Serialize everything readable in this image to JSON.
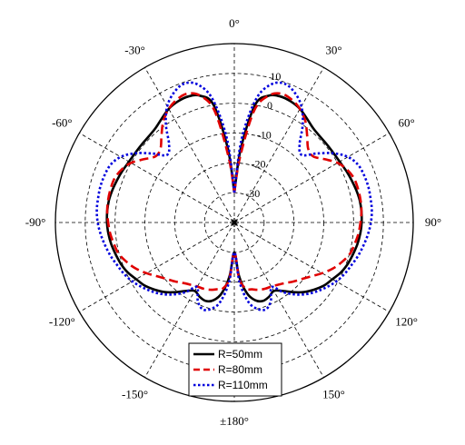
{
  "chart_data": {
    "type": "line",
    "subtype": "polar",
    "title": "",
    "angle_labels": [
      "0°",
      "30°",
      "60°",
      "90°",
      "120°",
      "150°",
      "±180°",
      "-150°",
      "-120°",
      "-90°",
      "-60°",
      "-30°"
    ],
    "angle_label_degrees": [
      0,
      30,
      60,
      90,
      120,
      150,
      180,
      -150,
      -120,
      -90,
      -60,
      -30
    ],
    "radial_ticks": [
      10,
      0,
      -10,
      -20,
      -30
    ],
    "radial_tick_labels": [
      "10",
      "0",
      "-10",
      "-20",
      "-30"
    ],
    "radial_range": [
      -40,
      20
    ],
    "grid": true,
    "legend_placement": "bottom-center",
    "angles": [
      0,
      5,
      10,
      15,
      20,
      25,
      30,
      35,
      40,
      45,
      50,
      55,
      60,
      65,
      70,
      75,
      80,
      85,
      90,
      95,
      100,
      105,
      110,
      115,
      120,
      125,
      130,
      135,
      140,
      145,
      150,
      155,
      160,
      165,
      170,
      175,
      180
    ],
    "series": [
      {
        "name": "R=50mm",
        "color": "#000000",
        "dash": "solid",
        "values": [
          -30,
          -15,
          0,
          4,
          5,
          4.8,
          4,
          2.5,
          1.2,
          0.7,
          0.6,
          0.6,
          0.8,
          1.3,
          1.8,
          2.3,
          2.7,
          2.8,
          2.7,
          2.4,
          1.9,
          1.2,
          0.5,
          -0.5,
          -2,
          -3.2,
          -5,
          -7,
          -9.5,
          -12,
          -13.5,
          -12.5,
          -12,
          -13,
          -16,
          -22,
          -30
        ]
      },
      {
        "name": "R=80mm",
        "color": "#e00000",
        "dash": "dashed",
        "values": [
          -30,
          -18,
          -2,
          4,
          6,
          5.5,
          4,
          1.5,
          -2,
          -5,
          -5.5,
          -3,
          0,
          1.8,
          2.8,
          3,
          3,
          2.8,
          2.3,
          1.8,
          1,
          0.2,
          -1.5,
          -3.5,
          -6,
          -8.5,
          -10.5,
          -12,
          -13.5,
          -14.5,
          -15.2,
          -15.5,
          -16,
          -16.8,
          -17.5,
          -21,
          -30
        ]
      },
      {
        "name": "R=110mm",
        "color": "#0000dd",
        "dash": "dotted",
        "values": [
          -30,
          -12,
          2,
          8,
          9.5,
          8,
          5,
          0,
          -6,
          -8,
          -4,
          0.5,
          4,
          5.8,
          6.3,
          6.5,
          6.4,
          6.3,
          5.8,
          5,
          4,
          3,
          1.8,
          0.8,
          -0.5,
          -2.2,
          -4,
          -6,
          -8.5,
          -11.5,
          -15,
          -11,
          -9,
          -10,
          -13,
          -20,
          -30
        ]
      }
    ]
  }
}
